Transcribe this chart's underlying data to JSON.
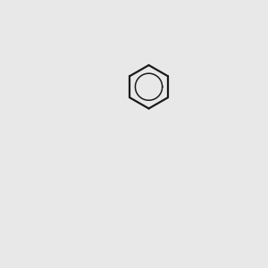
{
  "bg_color": "#e8e8e8",
  "bond_color": "#1a1a1a",
  "N_color": "#2233cc",
  "O_color": "#cc2200",
  "H_color": "#447788",
  "lw": 1.6,
  "dbo": 0.012
}
